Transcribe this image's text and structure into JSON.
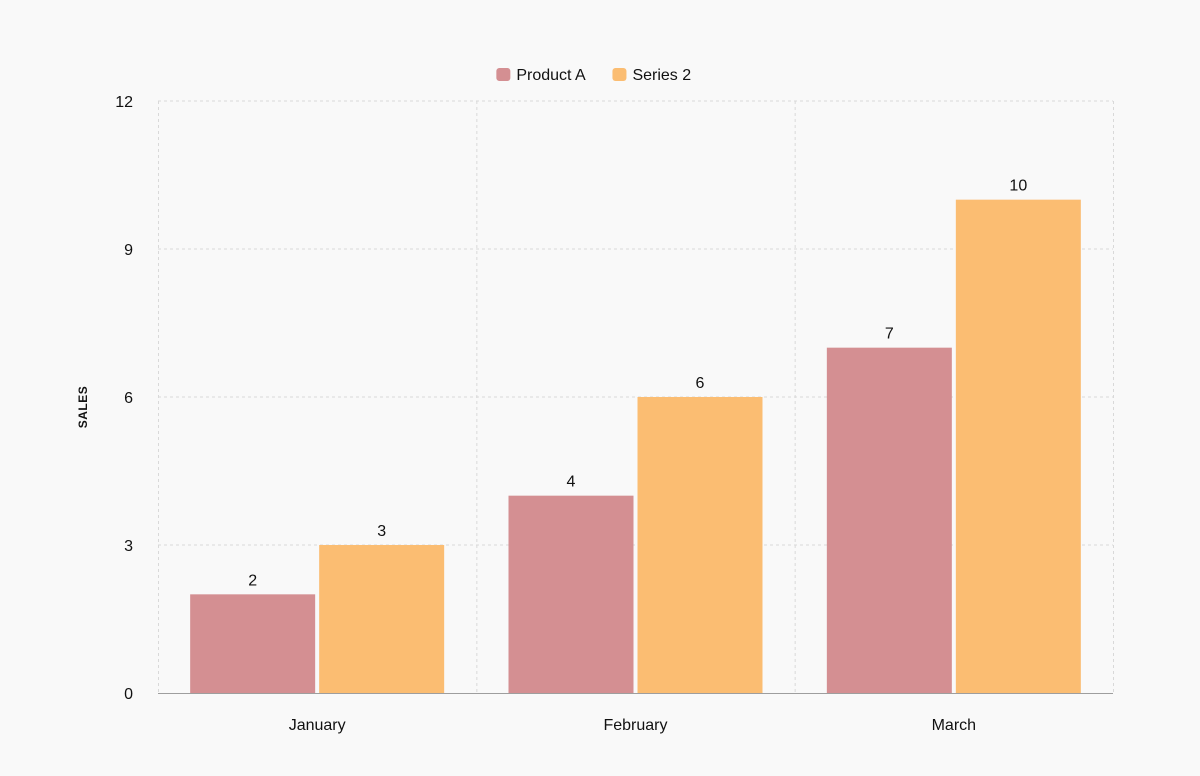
{
  "chart_data": {
    "type": "bar",
    "categories": [
      "January",
      "February",
      "March"
    ],
    "series": [
      {
        "name": "Product A",
        "values": [
          2,
          4,
          7
        ],
        "color": "#d48f92"
      },
      {
        "name": "Series 2",
        "values": [
          3,
          6,
          10
        ],
        "color": "#fbbd72"
      }
    ],
    "title": "",
    "xlabel": "",
    "ylabel": "SALES",
    "ylim": [
      0,
      12
    ],
    "yticks": [
      0,
      3,
      6,
      9,
      12
    ],
    "grid": true,
    "legend_position": "top-center",
    "data_labels": true
  }
}
